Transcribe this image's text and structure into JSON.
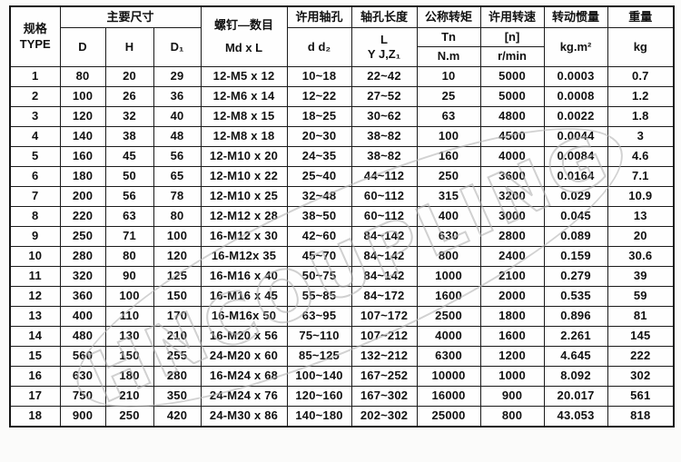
{
  "table": {
    "header": {
      "type_label": "规格",
      "type_sub": "TYPE",
      "main_dims_title": "主要尺寸",
      "col_d": "D",
      "col_h": "H",
      "col_d1": "D₁",
      "screws_title": "螺钉—数目",
      "screws_sub": "Md x L",
      "bore_title": "许用轴孔",
      "bore_sub": "d  d₂",
      "bore_len_title": "轴孔长度",
      "bore_len_sub1": "L",
      "bore_len_sub2": "Y J,Z₁",
      "torque_title": "公称转矩",
      "torque_sym": "Tn",
      "torque_unit": "N.m",
      "speed_title": "许用转速",
      "speed_sym": "[n]",
      "speed_unit": "r/min",
      "inertia_title": "转动惯量",
      "inertia_unit": "kg.m²",
      "weight_title": "重量",
      "weight_unit": "kg"
    },
    "rows": [
      [
        "1",
        "80",
        "20",
        "29",
        "12-M5 x 12",
        "10~18",
        "22~42",
        "10",
        "5000",
        "0.0003",
        "0.7"
      ],
      [
        "2",
        "100",
        "26",
        "36",
        "12-M6 x 14",
        "12~22",
        "27~52",
        "25",
        "5000",
        "0.0008",
        "1.2"
      ],
      [
        "3",
        "120",
        "32",
        "40",
        "12-M8 x 15",
        "18~25",
        "30~62",
        "63",
        "4800",
        "0.0022",
        "1.8"
      ],
      [
        "4",
        "140",
        "38",
        "48",
        "12-M8 x 18",
        "20~30",
        "38~82",
        "100",
        "4500",
        "0.0044",
        "3"
      ],
      [
        "5",
        "160",
        "45",
        "56",
        "12-M10 x 20",
        "24~35",
        "38~82",
        "160",
        "4000",
        "0.0084",
        "4.6"
      ],
      [
        "6",
        "180",
        "50",
        "65",
        "12-M10 x 22",
        "25~40",
        "44~112",
        "250",
        "3600",
        "0.0164",
        "7.1"
      ],
      [
        "7",
        "200",
        "56",
        "78",
        "12-M10 x 25",
        "32~48",
        "60~112",
        "315",
        "3200",
        "0.029",
        "10.9"
      ],
      [
        "8",
        "220",
        "63",
        "80",
        "12-M12 x 28",
        "38~50",
        "60~112",
        "400",
        "3000",
        "0.045",
        "13"
      ],
      [
        "9",
        "250",
        "71",
        "100",
        "16-M12 x 30",
        "42~60",
        "84~142",
        "630",
        "2800",
        "0.089",
        "20"
      ],
      [
        "10",
        "280",
        "80",
        "120",
        "16-M12x 35",
        "45~70",
        "84~142",
        "800",
        "2400",
        "0.159",
        "30.6"
      ],
      [
        "11",
        "320",
        "90",
        "125",
        "16-M16 x 40",
        "50~75",
        "84~142",
        "1000",
        "2100",
        "0.279",
        "39"
      ],
      [
        "12",
        "360",
        "100",
        "150",
        "16-M16 x 45",
        "55~85",
        "84~172",
        "1600",
        "2000",
        "0.535",
        "59"
      ],
      [
        "13",
        "400",
        "110",
        "170",
        "16-M16x 50",
        "63~95",
        "107~172",
        "2500",
        "1800",
        "0.896",
        "81"
      ],
      [
        "14",
        "480",
        "130",
        "210",
        "16-M20 x 56",
        "75~110",
        "107~212",
        "4000",
        "1600",
        "2.261",
        "145"
      ],
      [
        "15",
        "560",
        "150",
        "255",
        "24-M20 x 60",
        "85~125",
        "132~212",
        "6300",
        "1200",
        "4.645",
        "222"
      ],
      [
        "16",
        "630",
        "180",
        "280",
        "16-M24 x 68",
        "100~140",
        "167~252",
        "10000",
        "1000",
        "8.092",
        "302"
      ],
      [
        "17",
        "750",
        "210",
        "350",
        "24-M24 x 76",
        "120~160",
        "167~302",
        "16000",
        "900",
        "20.017",
        "561"
      ],
      [
        "18",
        "900",
        "250",
        "420",
        "24-M30 x 86",
        "140~180",
        "202~302",
        "25000",
        "800",
        "43.053",
        "818"
      ]
    ]
  },
  "watermark": {
    "text": "HNCOUPLING"
  },
  "colors": {
    "border": "#1b1b1b",
    "text": "#111111",
    "watermark": "#b2b2b2"
  }
}
